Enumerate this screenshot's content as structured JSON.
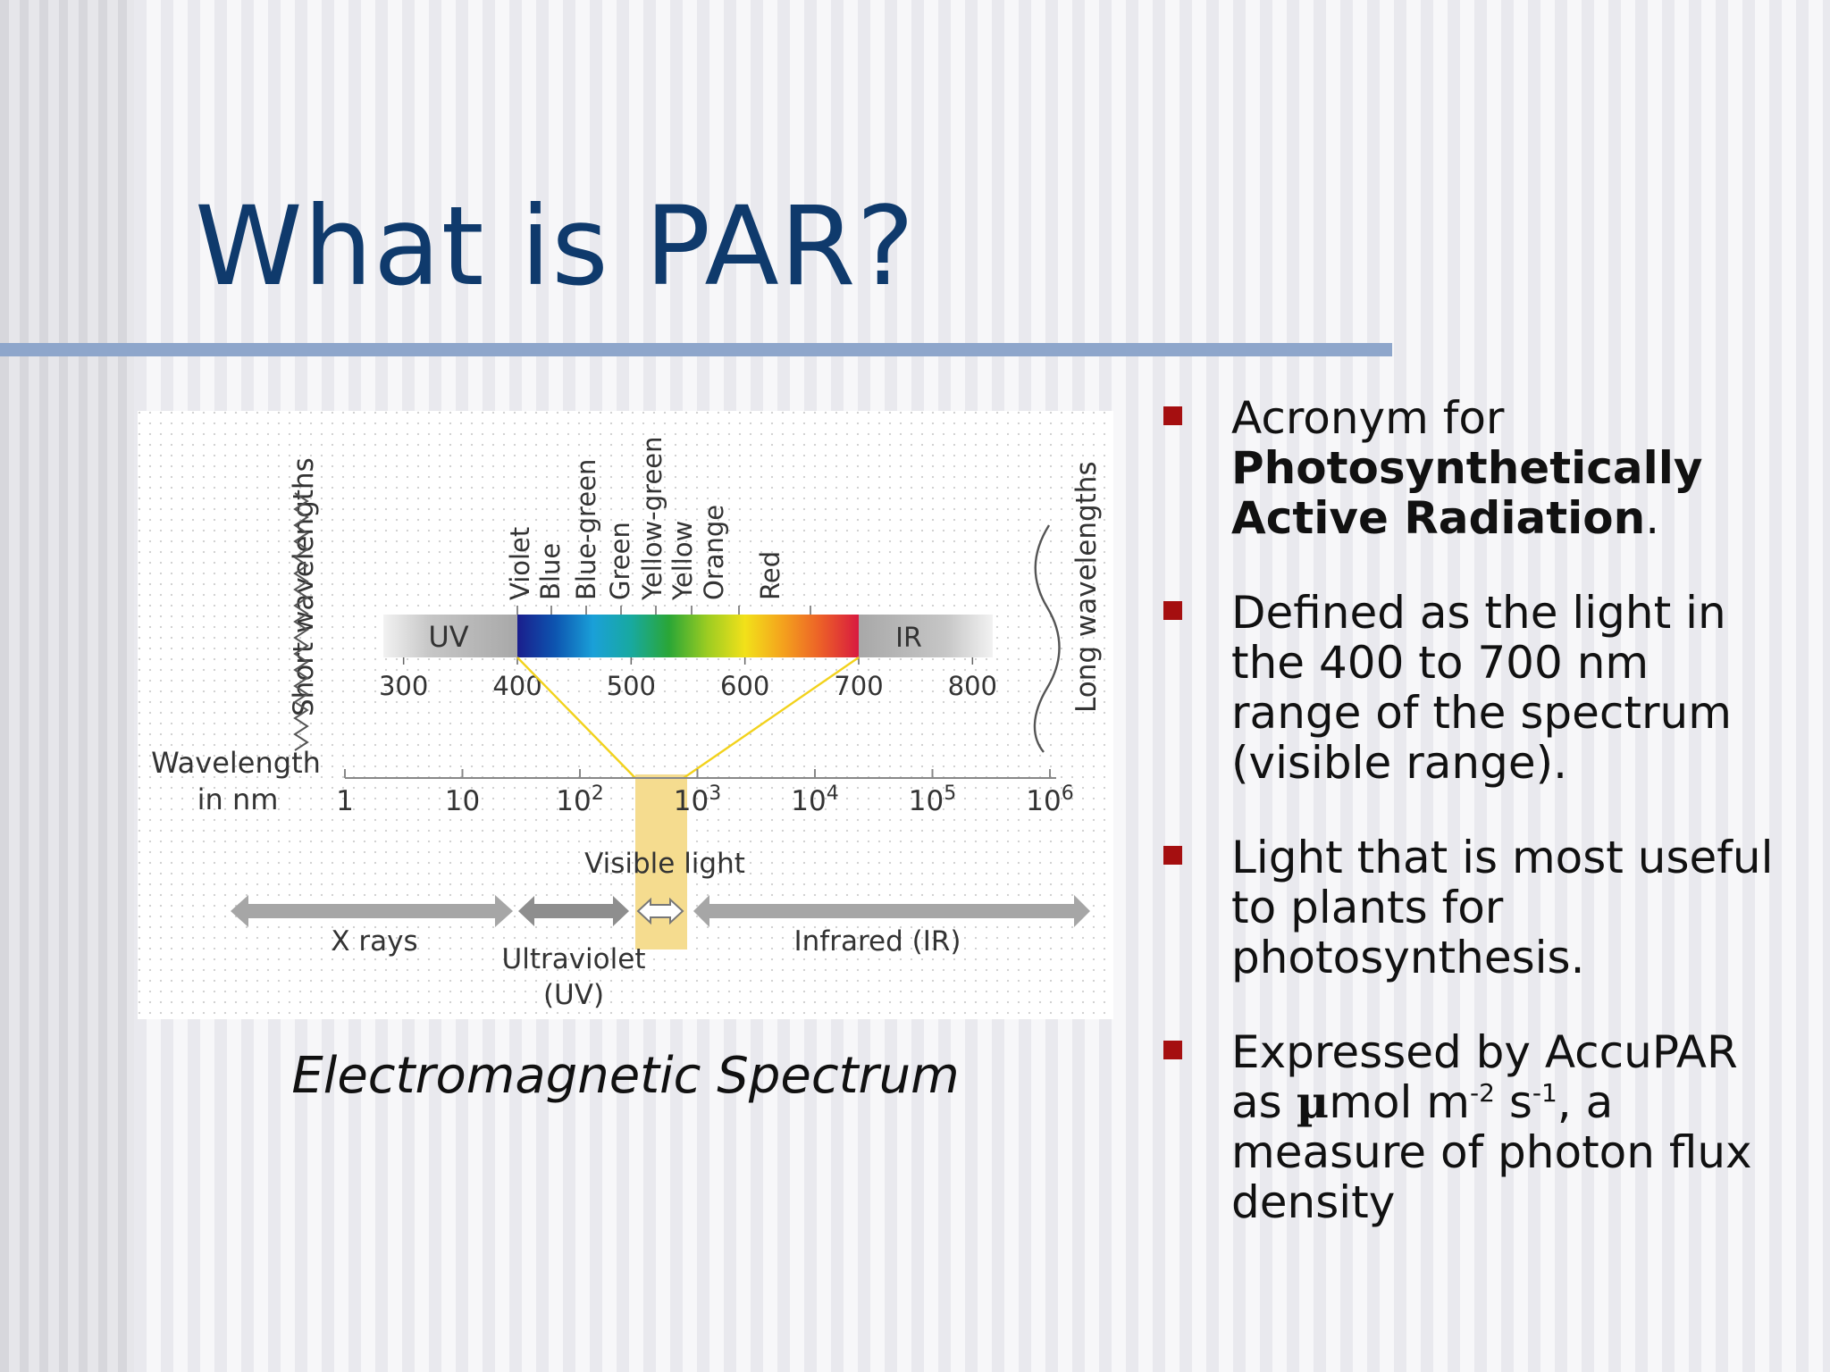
{
  "slide": {
    "title": "What is PAR?"
  },
  "figure": {
    "short_wavelengths_label": "Short wavelengths",
    "long_wavelengths_label": "Long wavelengths",
    "wavelength_axis_label_line1": "Wavelength",
    "wavelength_axis_label_line2": "in nm",
    "log_ticks": [
      {
        "base": "1",
        "exp": ""
      },
      {
        "base": "10",
        "exp": ""
      },
      {
        "base": "10",
        "exp": "2"
      },
      {
        "base": "10",
        "exp": "3"
      },
      {
        "base": "10",
        "exp": "4"
      },
      {
        "base": "10",
        "exp": "5"
      },
      {
        "base": "10",
        "exp": "6"
      }
    ],
    "nm_ticks": [
      "300",
      "400",
      "500",
      "600",
      "700",
      "800"
    ],
    "band_labels": {
      "uv": "UV",
      "ir": "IR"
    },
    "color_names": [
      "Violet",
      "Blue",
      "Blue-green",
      "Green",
      "Yellow-green",
      "Yellow",
      "Orange",
      "Red"
    ],
    "visible_light_label": "Visible light",
    "region_labels": {
      "x_rays": "X rays",
      "ultraviolet_line1": "Ultraviolet",
      "ultraviolet_line2": "(UV)",
      "infrared": "Infrared (IR)"
    },
    "spectrum_colors": [
      "#1a1e8c",
      "#0d55b0",
      "#1aa0d8",
      "#18a9a0",
      "#2aa636",
      "#9bcc22",
      "#f2e11a",
      "#f4a21d",
      "#ec5f28",
      "#d81a3f"
    ],
    "caption": "Electromagnetic Spectrum"
  },
  "bullets": [
    {
      "pre": "Acronym for ",
      "strong": "Photosynthetically Active Radiation",
      "post": "."
    },
    {
      "text": "Defined as the light in the 400 to 700 nm range of the spectrum (visible range)."
    },
    {
      "text": "Light that is most useful to plants for photosynthesis."
    },
    {
      "pre": "Expressed by AccuPAR as ",
      "mu": "µ",
      "unit_a": "mol m",
      "exp_a": "-2",
      "unit_b": " s",
      "exp_b": "-1",
      "post": ", a measure of photon flux density"
    }
  ],
  "colors": {
    "title": "#0f3a6c",
    "title_rule": "#8ea6cb",
    "bullet_marker": "#a50f10",
    "par_highlight": "#f5dc8f",
    "visible_lines": "#f2d21c"
  }
}
